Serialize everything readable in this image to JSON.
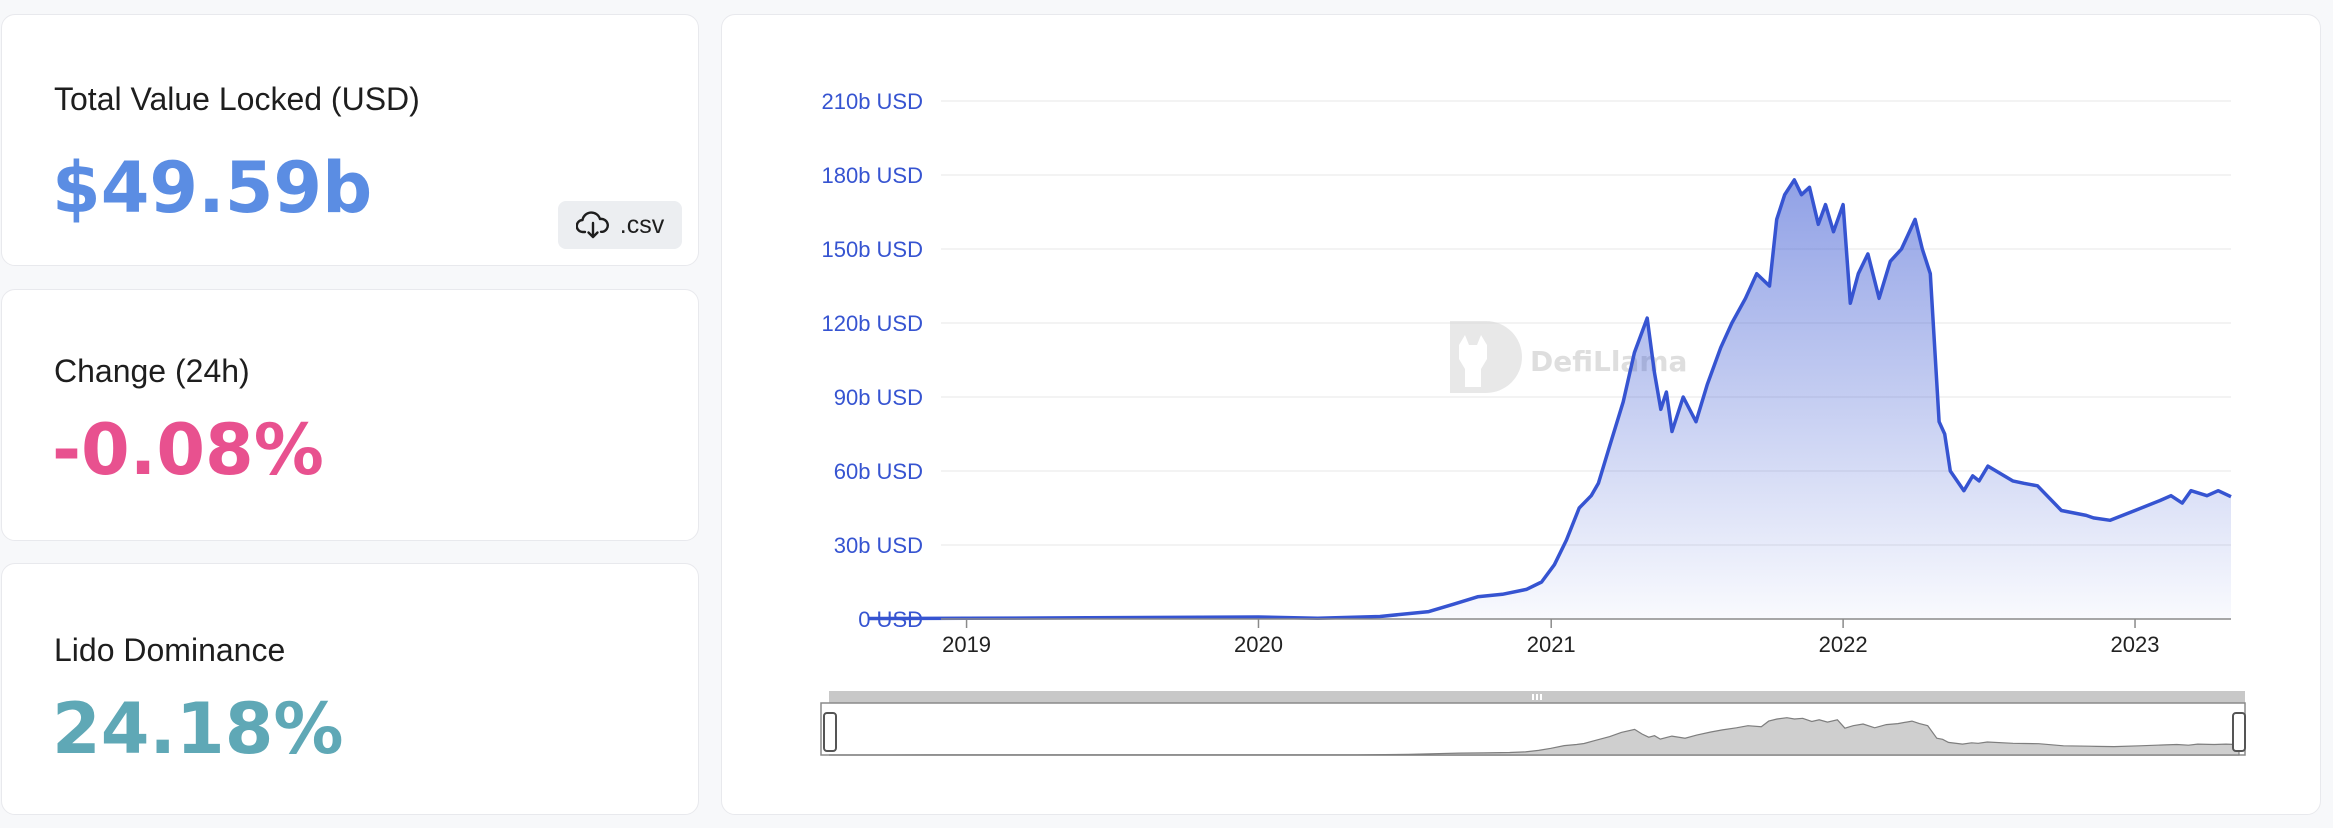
{
  "stats": {
    "tvl": {
      "label": "Total Value Locked (USD)",
      "value": "$49.59b"
    },
    "change": {
      "label": "Change (24h)",
      "value": "-0.08%"
    },
    "dominance": {
      "label": "Lido Dominance",
      "value": "24.18%"
    }
  },
  "csv_button": {
    "label": ".csv",
    "icon": "cloud-download-icon"
  },
  "colors": {
    "tvl_value": "#5b8de3",
    "change_value": "#e8518f",
    "dominance_value": "#5fa8b6",
    "line": "#3654d1",
    "axis_label": "#3654d1"
  },
  "watermark": {
    "text": "DefiLlama"
  },
  "chart_data": {
    "type": "area",
    "ylabel": "",
    "xlabel": "",
    "ylim": [
      0,
      210
    ],
    "y_ticks": [
      "0 USD",
      "30b USD",
      "60b USD",
      "90b USD",
      "120b USD",
      "150b USD",
      "180b USD",
      "210b USD"
    ],
    "x_ticks": [
      "2019",
      "2020",
      "2021",
      "2022",
      "2023"
    ],
    "grid": true,
    "series": [
      {
        "x": [
          "2018-09-01",
          "2019-01-01",
          "2019-06-01",
          "2020-01-01",
          "2020-03-15",
          "2020-06-01",
          "2020-08-01",
          "2020-09-01",
          "2020-10-01",
          "2020-11-01",
          "2020-12-01",
          "2020-12-20",
          "2021-01-05",
          "2021-01-20",
          "2021-02-05",
          "2021-02-20",
          "2021-03-01",
          "2021-03-15",
          "2021-04-01",
          "2021-04-15",
          "2021-05-01",
          "2021-05-10",
          "2021-05-18",
          "2021-05-25",
          "2021-06-01",
          "2021-06-15",
          "2021-07-01",
          "2021-07-15",
          "2021-08-01",
          "2021-08-15",
          "2021-09-01",
          "2021-09-15",
          "2021-10-01",
          "2021-10-10",
          "2021-10-20",
          "2021-11-01",
          "2021-11-10",
          "2021-11-20",
          "2021-12-01",
          "2021-12-10",
          "2021-12-20",
          "2022-01-01",
          "2022-01-10",
          "2022-01-20",
          "2022-02-01",
          "2022-02-15",
          "2022-03-01",
          "2022-03-15",
          "2022-04-01",
          "2022-04-10",
          "2022-04-20",
          "2022-05-01",
          "2022-05-08",
          "2022-05-15",
          "2022-06-01",
          "2022-06-12",
          "2022-06-20",
          "2022-07-01",
          "2022-08-01",
          "2022-08-15",
          "2022-09-01",
          "2022-10-01",
          "2022-11-01",
          "2022-11-10",
          "2022-12-01",
          "2023-01-01",
          "2023-02-01",
          "2023-02-15",
          "2023-03-01",
          "2023-03-12",
          "2023-04-01",
          "2023-04-15",
          "2023-05-01"
        ],
        "values": [
          0.2,
          0.3,
          0.5,
          0.8,
          0.3,
          1.0,
          3.0,
          6.0,
          9.0,
          10.0,
          12.0,
          15.0,
          22.0,
          32.0,
          45.0,
          50.0,
          55.0,
          70.0,
          88.0,
          108.0,
          122.0,
          100.0,
          85.0,
          92.0,
          76.0,
          90.0,
          80.0,
          95.0,
          110.0,
          120.0,
          130.0,
          140.0,
          135.0,
          162.0,
          172.0,
          178.0,
          172.0,
          175.0,
          160.0,
          168.0,
          157.0,
          168.0,
          128.0,
          140.0,
          148.0,
          130.0,
          145.0,
          150.0,
          162.0,
          150.0,
          140.0,
          80.0,
          75.0,
          60.0,
          52.0,
          58.0,
          56.0,
          62.0,
          56.0,
          55.0,
          54.0,
          44.0,
          42.0,
          41.0,
          40.0,
          44.0,
          48.0,
          50.0,
          47.0,
          52.0,
          50.0,
          52.0,
          49.59
        ]
      }
    ]
  }
}
